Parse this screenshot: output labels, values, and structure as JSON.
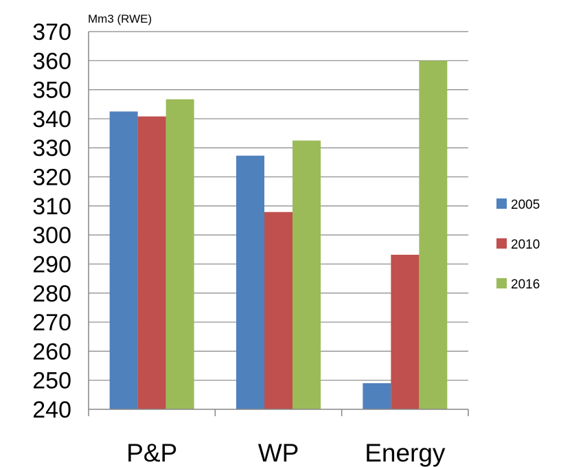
{
  "chart_data": {
    "type": "bar",
    "title": "",
    "ylabel": "Mm3 (RWE)",
    "xlabel": "",
    "categories": [
      "P&P",
      "WP",
      "Energy"
    ],
    "series": [
      {
        "name": "2005",
        "color": "#4F81BD",
        "values": [
          342.5,
          327.3,
          249.0
        ]
      },
      {
        "name": "2010",
        "color": "#C0504D",
        "values": [
          340.8,
          307.9,
          293.2
        ]
      },
      {
        "name": "2016",
        "color": "#9BBB59",
        "values": [
          346.7,
          332.5,
          360.0
        ]
      }
    ],
    "ylim": [
      240,
      370
    ],
    "yticks": [
      240,
      250,
      260,
      270,
      280,
      290,
      300,
      310,
      320,
      330,
      340,
      350,
      360,
      370
    ],
    "grid": true,
    "legend_position": "right"
  }
}
